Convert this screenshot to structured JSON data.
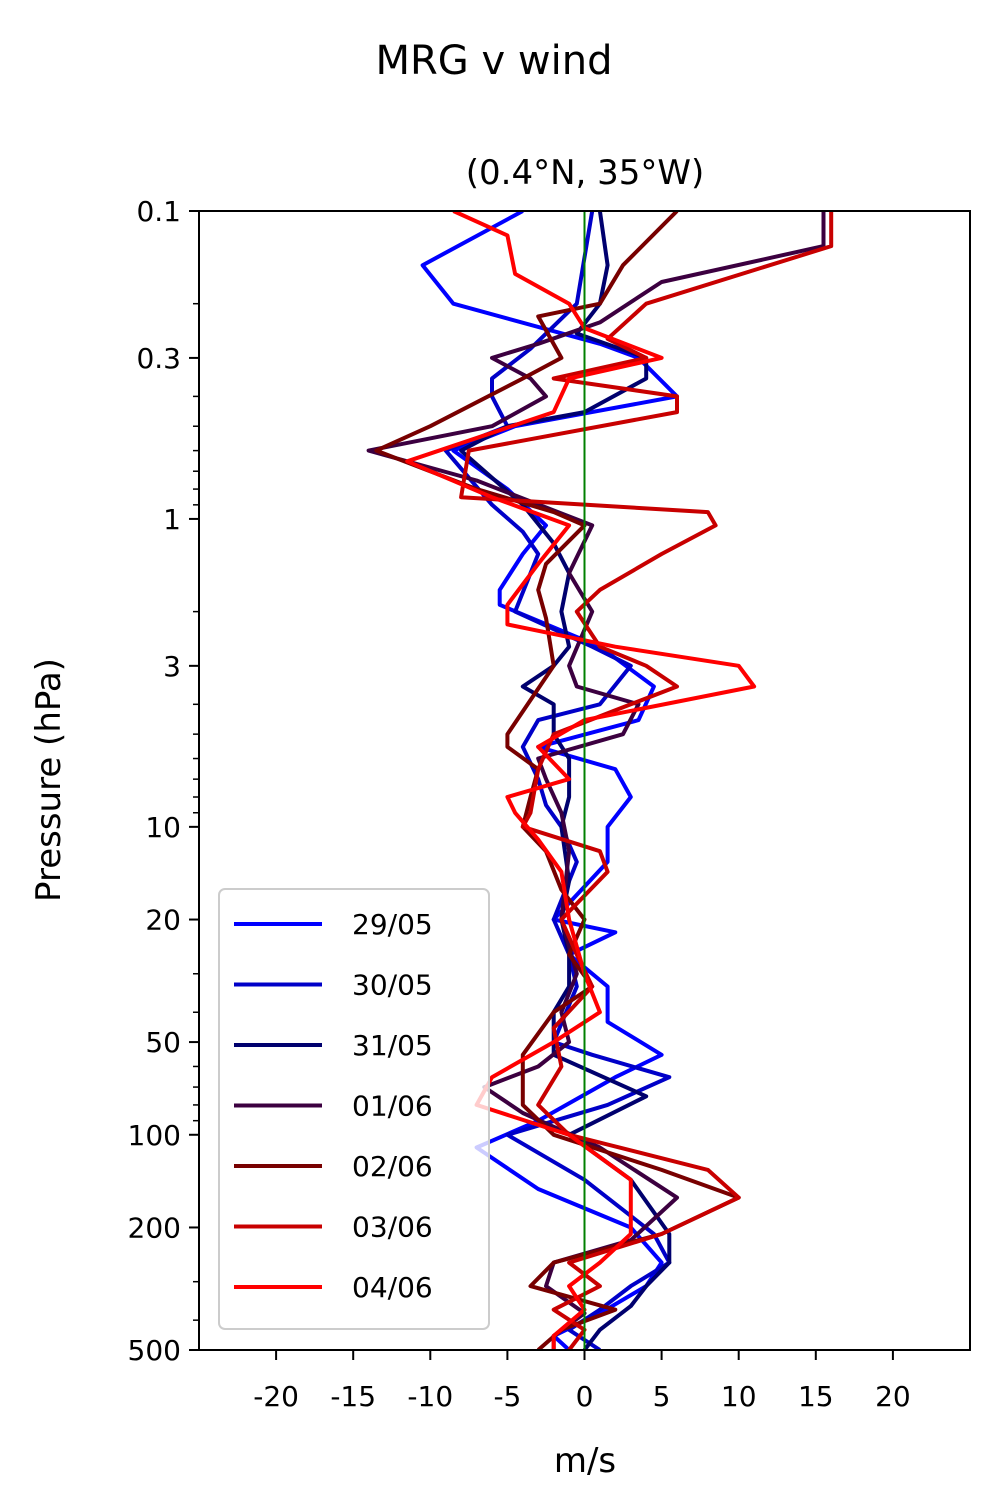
{
  "chart_data": {
    "type": "line",
    "suptitle": "MRG v wind",
    "title": "(0.4°N, 35°W)",
    "xlabel": "m/s",
    "ylabel": "Pressure (hPa)",
    "xlim": [
      -25,
      25
    ],
    "ylim": [
      500,
      0.1
    ],
    "yscale": "log",
    "xticks": [
      -20,
      -15,
      -10,
      -5,
      0,
      5,
      10,
      15,
      20
    ],
    "xtick_labels": [
      "-20",
      "-15",
      "-10",
      "-5",
      "0",
      "5",
      "10",
      "15",
      "20"
    ],
    "yticks": [
      0.1,
      0.3,
      1,
      3,
      10,
      20,
      50,
      100,
      200,
      500
    ],
    "ytick_labels": [
      "0.1",
      "0.3",
      "1",
      "3",
      "10",
      "20",
      "50",
      "100",
      "200",
      "500"
    ],
    "reference_line": {
      "x": 0,
      "color": "#008000"
    },
    "legend_position": "lower-left",
    "series": [
      {
        "name": "29/05",
        "color": "#0000ff",
        "points": [
          [
            -4,
            0.1
          ],
          [
            -10.5,
            0.15
          ],
          [
            -8.5,
            0.2
          ],
          [
            1,
            0.27
          ],
          [
            3.5,
            0.3
          ],
          [
            6,
            0.4
          ],
          [
            -4.5,
            0.5
          ],
          [
            -8.5,
            0.6
          ],
          [
            -5,
            0.8
          ],
          [
            -2.5,
            1.05
          ],
          [
            -4,
            1.3
          ],
          [
            -5.5,
            1.7
          ],
          [
            -5.5,
            1.9
          ],
          [
            1,
            2.6
          ],
          [
            4.5,
            3.5
          ],
          [
            3.5,
            4.5
          ],
          [
            -3,
            5.5
          ],
          [
            2,
            6.5
          ],
          [
            3,
            8
          ],
          [
            1.5,
            10
          ],
          [
            1.5,
            13
          ],
          [
            -2,
            20
          ],
          [
            2,
            22
          ],
          [
            -1,
            26
          ],
          [
            1.5,
            33
          ],
          [
            1.5,
            43
          ],
          [
            5,
            55
          ],
          [
            2,
            65
          ],
          [
            -3,
            90
          ],
          [
            -7,
            110
          ],
          [
            -3,
            150
          ],
          [
            3,
            200
          ],
          [
            5,
            260
          ],
          [
            4,
            310
          ],
          [
            1,
            380
          ],
          [
            -2,
            450
          ],
          [
            -1,
            500
          ]
        ]
      },
      {
        "name": "30/05",
        "color": "#0000c8",
        "points": [
          [
            0.5,
            0.1
          ],
          [
            -0.5,
            0.2
          ],
          [
            -3.5,
            0.28
          ],
          [
            -6,
            0.35
          ],
          [
            -6,
            0.4
          ],
          [
            -5,
            0.5
          ],
          [
            -9,
            0.6
          ],
          [
            -6,
            0.9
          ],
          [
            -4,
            1.1
          ],
          [
            -3,
            1.3
          ],
          [
            -4.5,
            2
          ],
          [
            0.5,
            2.6
          ],
          [
            3,
            3
          ],
          [
            1,
            4
          ],
          [
            -3,
            4.5
          ],
          [
            -4,
            5.5
          ],
          [
            -3,
            7
          ],
          [
            -2.5,
            8.5
          ],
          [
            -1.5,
            10
          ],
          [
            -0.5,
            13
          ],
          [
            -2,
            20
          ],
          [
            -1,
            26
          ],
          [
            -0.5,
            33
          ],
          [
            -2,
            50
          ],
          [
            0.5,
            55
          ],
          [
            5.5,
            65
          ],
          [
            1.5,
            80
          ],
          [
            -5,
            100
          ],
          [
            0,
            140
          ],
          [
            4.5,
            210
          ],
          [
            5.5,
            260
          ],
          [
            3,
            310
          ],
          [
            1,
            370
          ],
          [
            -1,
            430
          ],
          [
            1,
            500
          ]
        ]
      },
      {
        "name": "31/05",
        "color": "#00006e",
        "points": [
          [
            1,
            0.1
          ],
          [
            1.5,
            0.15
          ],
          [
            1,
            0.2
          ],
          [
            -0.5,
            0.25
          ],
          [
            4,
            0.3
          ],
          [
            4,
            0.35
          ],
          [
            0,
            0.45
          ],
          [
            -5,
            0.5
          ],
          [
            -8,
            0.6
          ],
          [
            -4,
            0.9
          ],
          [
            -2,
            1.2
          ],
          [
            -1,
            1.5
          ],
          [
            -1.5,
            2
          ],
          [
            -1,
            2.6
          ],
          [
            -2,
            3
          ],
          [
            -4,
            3.5
          ],
          [
            -2,
            4
          ],
          [
            -2,
            5
          ],
          [
            -1,
            6
          ],
          [
            -1,
            8
          ],
          [
            -1.5,
            10
          ],
          [
            -1,
            15
          ],
          [
            -1.5,
            20
          ],
          [
            -1,
            26
          ],
          [
            -1,
            33
          ],
          [
            -2,
            40
          ],
          [
            -2,
            55
          ],
          [
            4,
            75
          ],
          [
            -1,
            100
          ],
          [
            3,
            140
          ],
          [
            5.5,
            210
          ],
          [
            5.5,
            260
          ],
          [
            4,
            310
          ],
          [
            3,
            360
          ],
          [
            1,
            430
          ],
          [
            0,
            500
          ]
        ]
      },
      {
        "name": "01/06",
        "color": "#3c0040",
        "points": [
          [
            15.5,
            0.1
          ],
          [
            15.5,
            0.13
          ],
          [
            5,
            0.17
          ],
          [
            1,
            0.23
          ],
          [
            -3,
            0.27
          ],
          [
            -6,
            0.3
          ],
          [
            -3.5,
            0.35
          ],
          [
            -2.5,
            0.4
          ],
          [
            -6,
            0.5
          ],
          [
            -14,
            0.6
          ],
          [
            -7,
            0.75
          ],
          [
            0.5,
            1.05
          ],
          [
            -1,
            1.5
          ],
          [
            0.5,
            2
          ],
          [
            -1,
            3
          ],
          [
            -0.5,
            3.5
          ],
          [
            3.5,
            4
          ],
          [
            2.5,
            5
          ],
          [
            -3,
            6
          ],
          [
            -2.5,
            7
          ],
          [
            -1.5,
            9
          ],
          [
            -1,
            12
          ],
          [
            -1.5,
            20
          ],
          [
            -0.5,
            30
          ],
          [
            -1.5,
            40
          ],
          [
            -1,
            50
          ],
          [
            -3,
            60
          ],
          [
            -6.5,
            70
          ],
          [
            -4,
            85
          ],
          [
            1,
            110
          ],
          [
            6,
            160
          ],
          [
            3,
            220
          ],
          [
            -2,
            260
          ],
          [
            -2.5,
            310
          ],
          [
            0,
            380
          ],
          [
            -2,
            450
          ],
          [
            -2,
            500
          ]
        ]
      },
      {
        "name": "02/06",
        "color": "#780000",
        "points": [
          [
            6,
            0.1
          ],
          [
            2.5,
            0.15
          ],
          [
            1,
            0.2
          ],
          [
            -3,
            0.22
          ],
          [
            -1.5,
            0.3
          ],
          [
            -4,
            0.35
          ],
          [
            -10,
            0.5
          ],
          [
            -13.5,
            0.6
          ],
          [
            -7,
            0.8
          ],
          [
            -2,
            0.95
          ],
          [
            0,
            1.05
          ],
          [
            -2.5,
            1.4
          ],
          [
            -3,
            1.7
          ],
          [
            -2.5,
            2.1
          ],
          [
            -2,
            3
          ],
          [
            -5,
            5
          ],
          [
            -5,
            5.5
          ],
          [
            -3,
            6.5
          ],
          [
            -3.5,
            8
          ],
          [
            -4,
            10
          ],
          [
            -2.5,
            12
          ],
          [
            -1.5,
            16
          ],
          [
            0,
            20
          ],
          [
            -1,
            26
          ],
          [
            0.5,
            33
          ],
          [
            -2,
            40
          ],
          [
            -4,
            55
          ],
          [
            -4,
            80
          ],
          [
            -2,
            100
          ],
          [
            5,
            130
          ],
          [
            10,
            160
          ],
          [
            5,
            210
          ],
          [
            -2,
            260
          ],
          [
            -3.5,
            310
          ],
          [
            2,
            370
          ],
          [
            -1.5,
            430
          ],
          [
            -3,
            500
          ]
        ]
      },
      {
        "name": "03/06",
        "color": "#c80000",
        "points": [
          [
            16,
            0.1
          ],
          [
            16,
            0.13
          ],
          [
            4,
            0.2
          ],
          [
            1.5,
            0.26
          ],
          [
            4,
            0.3
          ],
          [
            -2,
            0.35
          ],
          [
            6,
            0.4
          ],
          [
            6,
            0.45
          ],
          [
            -7.5,
            0.6
          ],
          [
            -8,
            0.85
          ],
          [
            8,
            0.95
          ],
          [
            8.5,
            1.05
          ],
          [
            5,
            1.3
          ],
          [
            1,
            1.7
          ],
          [
            -0.5,
            2
          ],
          [
            1,
            2.6
          ],
          [
            4,
            3
          ],
          [
            6,
            3.5
          ],
          [
            3,
            4
          ],
          [
            -2,
            5
          ],
          [
            -3,
            6.5
          ],
          [
            -3.5,
            9
          ],
          [
            -4,
            10
          ],
          [
            1,
            12
          ],
          [
            1.5,
            14
          ],
          [
            -1.5,
            20
          ],
          [
            -0.5,
            26
          ],
          [
            0.5,
            33
          ],
          [
            -2,
            45
          ],
          [
            -1.5,
            60
          ],
          [
            -3,
            80
          ],
          [
            -1,
            100
          ],
          [
            8,
            130
          ],
          [
            10,
            160
          ],
          [
            5,
            210
          ],
          [
            -1,
            260
          ],
          [
            1,
            310
          ],
          [
            -2,
            370
          ],
          [
            0,
            430
          ],
          [
            -1,
            500
          ]
        ]
      },
      {
        "name": "04/06",
        "color": "#ff0000",
        "points": [
          [
            -8.5,
            0.1
          ],
          [
            -5,
            0.12
          ],
          [
            -4.5,
            0.16
          ],
          [
            -1,
            0.2
          ],
          [
            0,
            0.24
          ],
          [
            5,
            0.3
          ],
          [
            -1,
            0.35
          ],
          [
            -2,
            0.45
          ],
          [
            -11.5,
            0.65
          ],
          [
            -6,
            0.85
          ],
          [
            -1,
            1.05
          ],
          [
            -3,
            1.4
          ],
          [
            -5,
            1.9
          ],
          [
            -5,
            2.2
          ],
          [
            2,
            2.6
          ],
          [
            10,
            3
          ],
          [
            11,
            3.5
          ],
          [
            0,
            4.5
          ],
          [
            -3,
            5.5
          ],
          [
            -1,
            7
          ],
          [
            -5,
            8
          ],
          [
            -4.5,
            9
          ],
          [
            -3,
            11
          ],
          [
            -1.5,
            14
          ],
          [
            -1,
            20
          ],
          [
            0,
            30
          ],
          [
            1,
            40
          ],
          [
            -2,
            50
          ],
          [
            -6,
            65
          ],
          [
            -7,
            80
          ],
          [
            -1,
            100
          ],
          [
            3,
            140
          ],
          [
            3,
            210
          ],
          [
            1,
            260
          ],
          [
            -1,
            310
          ],
          [
            0,
            370
          ],
          [
            -2,
            450
          ],
          [
            -2,
            500
          ]
        ]
      }
    ]
  }
}
